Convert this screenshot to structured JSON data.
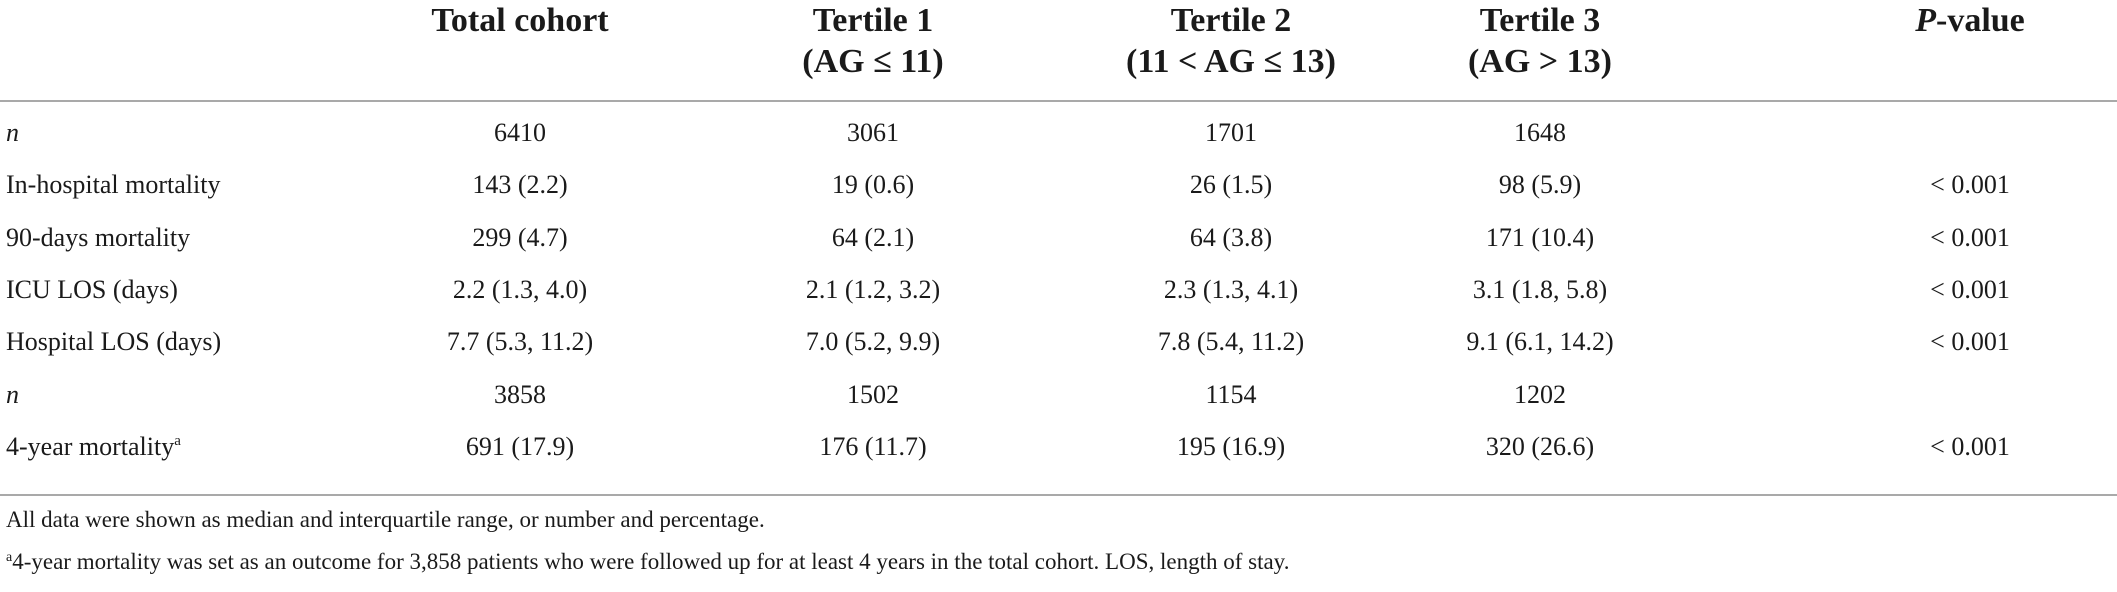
{
  "table": {
    "columns": [
      {
        "line1": "Total cohort",
        "line2": ""
      },
      {
        "line1": "Tertile 1",
        "line2": "(AG ≤ 11)"
      },
      {
        "line1": "Tertile 2",
        "line2": "(11 < AG ≤ 13)"
      },
      {
        "line1": "Tertile 3",
        "line2": "(AG > 13)"
      },
      {
        "line1_italic": "P",
        "line1_rest": "-value",
        "line2": ""
      }
    ],
    "rows": [
      {
        "label": "n",
        "label_italic": true,
        "sup": "",
        "values": [
          "6410",
          "3061",
          "1701",
          "1648",
          ""
        ]
      },
      {
        "label": "In-hospital mortality",
        "label_italic": false,
        "sup": "",
        "values": [
          "143 (2.2)",
          "19 (0.6)",
          "26 (1.5)",
          "98 (5.9)",
          "< 0.001"
        ]
      },
      {
        "label": "90-days mortality",
        "label_italic": false,
        "sup": "",
        "values": [
          "299 (4.7)",
          "64 (2.1)",
          "64 (3.8)",
          "171 (10.4)",
          "< 0.001"
        ]
      },
      {
        "label": "ICU LOS (days)",
        "label_italic": false,
        "sup": "",
        "values": [
          "2.2 (1.3, 4.0)",
          "2.1 (1.2, 3.2)",
          "2.3 (1.3, 4.1)",
          "3.1 (1.8, 5.8)",
          "< 0.001"
        ]
      },
      {
        "label": "Hospital LOS (days)",
        "label_italic": false,
        "sup": "",
        "values": [
          "7.7 (5.3, 11.2)",
          "7.0 (5.2, 9.9)",
          "7.8 (5.4, 11.2)",
          "9.1 (6.1, 14.2)",
          "< 0.001"
        ]
      },
      {
        "label": "n",
        "label_italic": true,
        "sup": "",
        "values": [
          "3858",
          "1502",
          "1154",
          "1202",
          ""
        ]
      },
      {
        "label": "4-year mortality",
        "label_italic": false,
        "sup": "a",
        "values": [
          "691 (17.9)",
          "176 (11.7)",
          "195 (16.9)",
          "320 (26.6)",
          "< 0.001"
        ]
      }
    ]
  },
  "footnotes": {
    "note1": "All data were shown as median and interquartile range, or number and percentage.",
    "note2_sup": "a",
    "note2": "4-year mortality was set as an outcome for 3,858 patients who were followed up for at least 4 years in the total cohort. LOS, length of stay."
  }
}
